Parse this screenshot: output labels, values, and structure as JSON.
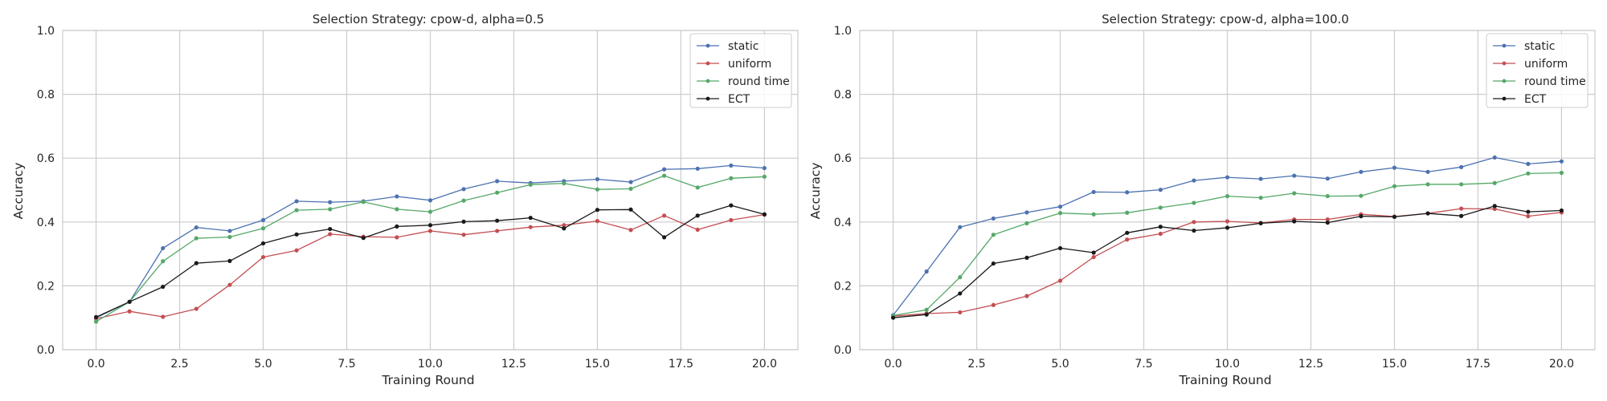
{
  "colors": {
    "static": "#4c72b0",
    "uniform": "#c44e52",
    "round time": "#55a868",
    "ECT": "#1a1a1a",
    "grid": "#cccccc",
    "frame": "#cccccc"
  },
  "chart_data": [
    {
      "type": "line",
      "title": "Selection Strategy: cpow-d, alpha=0.5",
      "xlabel": "Training Round",
      "ylabel": "Accuracy",
      "xlim": [
        -1,
        21
      ],
      "ylim": [
        0,
        1.0
      ],
      "xticks": [
        0.0,
        2.5,
        5.0,
        7.5,
        10.0,
        12.5,
        15.0,
        17.5,
        20.0
      ],
      "xtick_labels": [
        "0.0",
        "2.5",
        "5.0",
        "7.5",
        "10.0",
        "12.5",
        "15.0",
        "17.5",
        "20.0"
      ],
      "yticks": [
        0.0,
        0.2,
        0.4,
        0.6,
        0.8,
        1.0
      ],
      "ytick_labels": [
        "0.0",
        "0.2",
        "0.4",
        "0.6",
        "0.8",
        "1.0"
      ],
      "grid": true,
      "legend_position": "top-right",
      "x": [
        0,
        1,
        2,
        3,
        4,
        5,
        6,
        7,
        8,
        9,
        10,
        11,
        12,
        13,
        14,
        15,
        16,
        17,
        18,
        19,
        20
      ],
      "series": [
        {
          "name": "static",
          "values": [
            0.1,
            0.15,
            0.318,
            0.383,
            0.372,
            0.406,
            0.465,
            0.462,
            0.465,
            0.48,
            0.468,
            0.503,
            0.528,
            0.522,
            0.528,
            0.534,
            0.525,
            0.565,
            0.567,
            0.577,
            0.569
          ]
        },
        {
          "name": "uniform",
          "values": [
            0.097,
            0.12,
            0.103,
            0.128,
            0.203,
            0.29,
            0.311,
            0.362,
            0.354,
            0.352,
            0.372,
            0.36,
            0.372,
            0.384,
            0.39,
            0.403,
            0.375,
            0.42,
            0.376,
            0.406,
            0.423
          ]
        },
        {
          "name": "round time",
          "values": [
            0.088,
            0.15,
            0.277,
            0.349,
            0.353,
            0.38,
            0.437,
            0.44,
            0.463,
            0.44,
            0.432,
            0.467,
            0.492,
            0.517,
            0.521,
            0.502,
            0.504,
            0.545,
            0.508,
            0.537,
            0.542
          ]
        },
        {
          "name": "ECT",
          "values": [
            0.102,
            0.15,
            0.197,
            0.271,
            0.278,
            0.333,
            0.361,
            0.378,
            0.35,
            0.386,
            0.39,
            0.401,
            0.404,
            0.413,
            0.38,
            0.438,
            0.439,
            0.352,
            0.42,
            0.452,
            0.424
          ]
        }
      ]
    },
    {
      "type": "line",
      "title": "Selection Strategy: cpow-d, alpha=100.0",
      "xlabel": "Training Round",
      "ylabel": "Accuracy",
      "xlim": [
        -1,
        21
      ],
      "ylim": [
        0,
        1.0
      ],
      "xticks": [
        0.0,
        2.5,
        5.0,
        7.5,
        10.0,
        12.5,
        15.0,
        17.5,
        20.0
      ],
      "xtick_labels": [
        "0.0",
        "2.5",
        "5.0",
        "7.5",
        "10.0",
        "12.5",
        "15.0",
        "17.5",
        "20.0"
      ],
      "yticks": [
        0.0,
        0.2,
        0.4,
        0.6,
        0.8,
        1.0
      ],
      "ytick_labels": [
        "0.0",
        "0.2",
        "0.4",
        "0.6",
        "0.8",
        "1.0"
      ],
      "grid": true,
      "legend_position": "top-right",
      "x": [
        0,
        1,
        2,
        3,
        4,
        5,
        6,
        7,
        8,
        9,
        10,
        11,
        12,
        13,
        14,
        15,
        16,
        17,
        18,
        19,
        20
      ],
      "series": [
        {
          "name": "static",
          "values": [
            0.108,
            0.245,
            0.384,
            0.411,
            0.43,
            0.448,
            0.494,
            0.493,
            0.501,
            0.53,
            0.54,
            0.535,
            0.545,
            0.536,
            0.557,
            0.57,
            0.557,
            0.572,
            0.602,
            0.582,
            0.59
          ]
        },
        {
          "name": "uniform",
          "values": [
            0.105,
            0.113,
            0.117,
            0.14,
            0.168,
            0.216,
            0.29,
            0.345,
            0.363,
            0.4,
            0.402,
            0.397,
            0.408,
            0.408,
            0.424,
            0.417,
            0.427,
            0.442,
            0.441,
            0.418,
            0.43
          ]
        },
        {
          "name": "round time",
          "values": [
            0.107,
            0.125,
            0.227,
            0.36,
            0.396,
            0.428,
            0.424,
            0.429,
            0.445,
            0.46,
            0.481,
            0.476,
            0.49,
            0.481,
            0.482,
            0.512,
            0.518,
            0.518,
            0.522,
            0.552,
            0.554
          ]
        },
        {
          "name": "ECT",
          "values": [
            0.1,
            0.11,
            0.176,
            0.27,
            0.288,
            0.318,
            0.304,
            0.366,
            0.385,
            0.373,
            0.382,
            0.396,
            0.402,
            0.398,
            0.418,
            0.416,
            0.427,
            0.419,
            0.45,
            0.432,
            0.436
          ]
        }
      ]
    }
  ]
}
